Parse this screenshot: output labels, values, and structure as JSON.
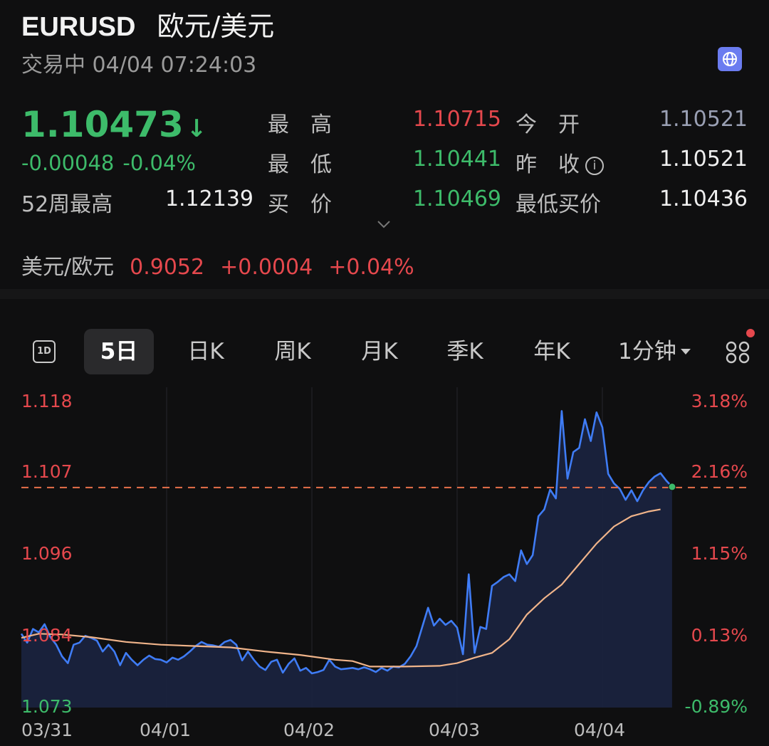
{
  "header": {
    "symbol": "EURUSD",
    "name_cn": "欧元/美元",
    "status": "交易中 04/04 07:24:03",
    "globe_icon": "globe-icon"
  },
  "quote": {
    "price": "1.10473",
    "price_arrow": "↓",
    "change": "-0.00048",
    "change_pct": "-0.04%",
    "high_label": "最　高",
    "high": "1.10715",
    "open_label": "今　开",
    "open": "1.10521",
    "low_label": "最　低",
    "low": "1.10441",
    "prev_close_label": "昨　收",
    "prev_close": "1.10521",
    "week52_label": "52周最高",
    "week52_high": "1.12139",
    "bid_label": "买　价",
    "bid": "1.10469",
    "min_bid_label": "最低买价",
    "min_bid": "1.10436"
  },
  "inverse": {
    "label": "美元/欧元",
    "price": "0.9052",
    "change": "+0.0004",
    "change_pct": "+0.04%"
  },
  "tabs": {
    "one_day": "1D",
    "five_day": "5日",
    "daily_k": "日K",
    "weekly_k": "周K",
    "monthly_k": "月K",
    "quarterly_k": "季K",
    "yearly_k": "年K",
    "interval": "1分钟"
  },
  "chart_data": {
    "type": "line",
    "left_ticks": [
      "1.118",
      "1.107",
      "1.096",
      "1.084",
      "1.073"
    ],
    "right_ticks": [
      "3.18%",
      "2.16%",
      "1.15%",
      "0.13%",
      "-0.89%"
    ],
    "x_ticks": [
      "03/31",
      "04/01",
      "04/02",
      "04/03",
      "04/04"
    ],
    "ylim": [
      1.073,
      1.118
    ],
    "reference_line": 1.1052,
    "series": [
      {
        "points": [
          [
            0,
            1.0838
          ],
          [
            0.2,
            1.0825
          ],
          [
            0.4,
            1.0845
          ],
          [
            0.6,
            1.084
          ],
          [
            0.8,
            1.0852
          ],
          [
            1.0,
            1.0833
          ],
          [
            1.2,
            1.0822
          ],
          [
            1.4,
            1.0805
          ],
          [
            1.6,
            1.0795
          ],
          [
            1.8,
            1.0822
          ],
          [
            2.0,
            1.0825
          ],
          [
            2.2,
            1.0835
          ],
          [
            2.4,
            1.0832
          ],
          [
            2.6,
            1.0828
          ],
          [
            2.8,
            1.0812
          ],
          [
            3.0,
            1.0822
          ],
          [
            3.2,
            1.0812
          ],
          [
            3.4,
            1.0792
          ],
          [
            3.6,
            1.081
          ],
          [
            3.8,
            1.08
          ],
          [
            4.0,
            1.0792
          ],
          [
            4.2,
            1.08
          ],
          [
            4.4,
            1.0806
          ],
          [
            4.6,
            1.0801
          ],
          [
            4.8,
            1.08
          ],
          [
            5.0,
            1.0796
          ],
          [
            5.2,
            1.0803
          ],
          [
            5.4,
            1.08
          ],
          [
            5.6,
            1.0805
          ],
          [
            5.8,
            1.0812
          ],
          [
            6.0,
            1.082
          ],
          [
            6.2,
            1.0826
          ],
          [
            6.4,
            1.0822
          ],
          [
            6.6,
            1.0821
          ],
          [
            6.8,
            1.0819
          ],
          [
            7.0,
            1.0826
          ],
          [
            7.2,
            1.0829
          ],
          [
            7.4,
            1.0822
          ],
          [
            7.6,
            1.0799
          ],
          [
            7.8,
            1.0812
          ],
          [
            8.0,
            1.08
          ],
          [
            8.2,
            1.079
          ],
          [
            8.4,
            1.0785
          ],
          [
            8.6,
            1.0797
          ],
          [
            8.8,
            1.08
          ],
          [
            9.0,
            1.0781
          ],
          [
            9.2,
            1.0794
          ],
          [
            9.4,
            1.0802
          ],
          [
            9.6,
            1.0784
          ],
          [
            9.8,
            1.0788
          ],
          [
            10.0,
            1.078
          ],
          [
            10.2,
            1.0782
          ],
          [
            10.4,
            1.0785
          ],
          [
            10.6,
            1.08
          ],
          [
            10.8,
            1.079
          ],
          [
            11.0,
            1.0786
          ],
          [
            11.2,
            1.0787
          ],
          [
            11.4,
            1.0788
          ],
          [
            11.6,
            1.0786
          ],
          [
            11.8,
            1.0789
          ],
          [
            12.0,
            1.0786
          ],
          [
            12.2,
            1.0782
          ],
          [
            12.4,
            1.0788
          ],
          [
            12.6,
            1.0784
          ],
          [
            12.8,
            1.079
          ],
          [
            13.0,
            1.0789
          ],
          [
            13.2,
            1.0794
          ],
          [
            13.4,
            1.0805
          ],
          [
            13.6,
            1.082
          ],
          [
            13.8,
            1.0848
          ],
          [
            14.0,
            1.0876
          ],
          [
            14.2,
            1.085
          ],
          [
            14.4,
            1.086
          ],
          [
            14.6,
            1.0851
          ],
          [
            14.8,
            1.0857
          ],
          [
            15.0,
            1.0847
          ],
          [
            15.2,
            1.0808
          ],
          [
            15.4,
            1.0925
          ],
          [
            15.6,
            1.081
          ],
          [
            15.8,
            1.0848
          ],
          [
            16.0,
            1.0845
          ],
          [
            16.2,
            1.0908
          ],
          [
            16.4,
            1.0914
          ],
          [
            16.6,
            1.0921
          ],
          [
            16.8,
            1.0925
          ],
          [
            17.0,
            1.0915
          ],
          [
            17.2,
            1.096
          ],
          [
            17.4,
            1.094
          ],
          [
            17.6,
            1.0953
          ],
          [
            17.8,
            1.101
          ],
          [
            18.0,
            1.102
          ],
          [
            18.2,
            1.1049
          ],
          [
            18.4,
            1.1036
          ],
          [
            18.6,
            1.1164
          ],
          [
            18.8,
            1.1065
          ],
          [
            19.0,
            1.1104
          ],
          [
            19.2,
            1.111
          ],
          [
            19.4,
            1.1152
          ],
          [
            19.6,
            1.112
          ],
          [
            19.8,
            1.1162
          ],
          [
            20.0,
            1.114
          ],
          [
            20.2,
            1.1072
          ],
          [
            20.4,
            1.1058
          ],
          [
            20.6,
            1.105
          ],
          [
            20.8,
            1.1034
          ],
          [
            21.0,
            1.1048
          ],
          [
            21.2,
            1.1032
          ],
          [
            21.4,
            1.1048
          ],
          [
            21.6,
            1.106
          ],
          [
            21.8,
            1.1068
          ],
          [
            22.0,
            1.1073
          ],
          [
            22.2,
            1.1062
          ],
          [
            22.4,
            1.1053
          ]
        ]
      },
      {
        "points": [
          [
            0,
            1.0832
          ],
          [
            0.6,
            1.0838
          ],
          [
            1.4,
            1.0837
          ],
          [
            2.4,
            1.0833
          ],
          [
            3.6,
            1.0826
          ],
          [
            4.8,
            1.0822
          ],
          [
            6.0,
            1.082
          ],
          [
            7.2,
            1.0818
          ],
          [
            8.4,
            1.0812
          ],
          [
            9.6,
            1.0807
          ],
          [
            10.8,
            1.08
          ],
          [
            11.4,
            1.0798
          ],
          [
            12.0,
            1.079
          ],
          [
            13.2,
            1.079
          ],
          [
            14.4,
            1.0791
          ],
          [
            15.0,
            1.0795
          ],
          [
            15.6,
            1.0803
          ],
          [
            16.2,
            1.081
          ],
          [
            16.8,
            1.083
          ],
          [
            17.4,
            1.0866
          ],
          [
            18.0,
            1.089
          ],
          [
            18.6,
            1.091
          ],
          [
            19.2,
            1.094
          ],
          [
            19.8,
            1.097
          ],
          [
            20.4,
            1.0995
          ],
          [
            21.0,
            1.101
          ],
          [
            21.6,
            1.1017
          ],
          [
            22.0,
            1.102
          ]
        ]
      }
    ]
  }
}
